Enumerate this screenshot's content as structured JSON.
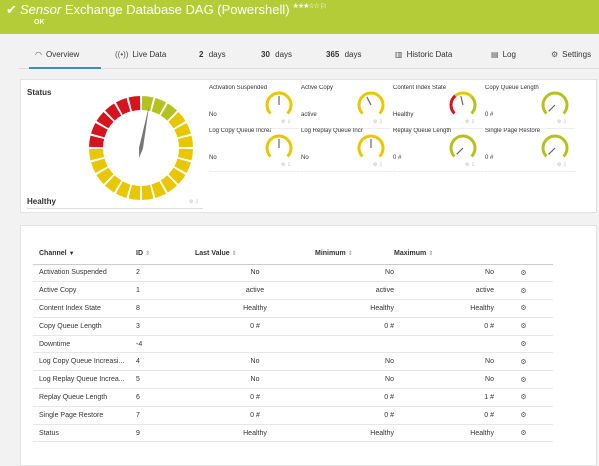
{
  "header": {
    "check_icon": "✔",
    "sensor_word": "Sensor",
    "title": "Exchange Database DAG (Powershell)",
    "stars": "★★★☆☆",
    "flag_icon": "⚐",
    "status": "OK",
    "bg_color": "#b4cc38"
  },
  "tabs": [
    {
      "icon": "◠",
      "label": "Overview",
      "active": true
    },
    {
      "icon": "((•))",
      "label": "Live Data"
    },
    {
      "num": "2",
      "label": "days"
    },
    {
      "num": "30",
      "label": "days"
    },
    {
      "num": "365",
      "label": "days"
    },
    {
      "icon": "▥",
      "label": "Historic Data"
    },
    {
      "icon": "▤",
      "label": "Log"
    },
    {
      "icon": "⚙",
      "label": "Settings"
    }
  ],
  "overview": {
    "status_label": "Status",
    "status_value": "Healthy",
    "big_gauge_value": 0.58,
    "gauges": [
      {
        "label": "Activation Suspended",
        "value": "No",
        "type": "yellow",
        "level": 0.5
      },
      {
        "label": "Active Copy",
        "value": "active",
        "type": "yellow",
        "level": 0.4
      },
      {
        "label": "Content Index State",
        "value": "Healthy",
        "type": "mixed",
        "level": 0.45
      },
      {
        "label": "Copy Queue Length",
        "value": "0 #",
        "type": "green",
        "level": 0.0
      },
      {
        "label": "Log Copy Queue Increa...",
        "value": "No",
        "type": "yellow",
        "level": 0.5
      },
      {
        "label": "Log Replay Queue Incr...",
        "value": "No",
        "type": "yellow",
        "level": 0.5
      },
      {
        "label": "Replay Queue Length",
        "value": "0 #",
        "type": "green",
        "level": 0.0
      },
      {
        "label": "Single Page Restore",
        "value": "0 #",
        "type": "green",
        "level": 0.0
      }
    ]
  },
  "table": {
    "headers": [
      "Channel",
      "ID",
      "Last Value",
      "Minimum",
      "Maximum"
    ],
    "rows": [
      [
        "Activation Suspended",
        "2",
        "No",
        "No",
        "No"
      ],
      [
        "Active Copy",
        "1",
        "active",
        "active",
        "active"
      ],
      [
        "Content Index State",
        "8",
        "Healthy",
        "Healthy",
        "Healthy"
      ],
      [
        "Copy Queue Length",
        "3",
        "0 #",
        "0 #",
        "0 #"
      ],
      [
        "Downtime",
        "-4",
        "",
        "",
        ""
      ],
      [
        "Log Copy Queue Increasi...",
        "4",
        "No",
        "No",
        "No"
      ],
      [
        "Log Replay Queue Increa...",
        "5",
        "No",
        "No",
        "No"
      ],
      [
        "Replay Queue Length",
        "6",
        "0 #",
        "0 #",
        "1 #"
      ],
      [
        "Single Page Restore",
        "7",
        "0 #",
        "0 #",
        "0 #"
      ],
      [
        "Status",
        "9",
        "Healthy",
        "Healthy",
        "Healthy"
      ]
    ],
    "gear_icon": "⚙"
  }
}
